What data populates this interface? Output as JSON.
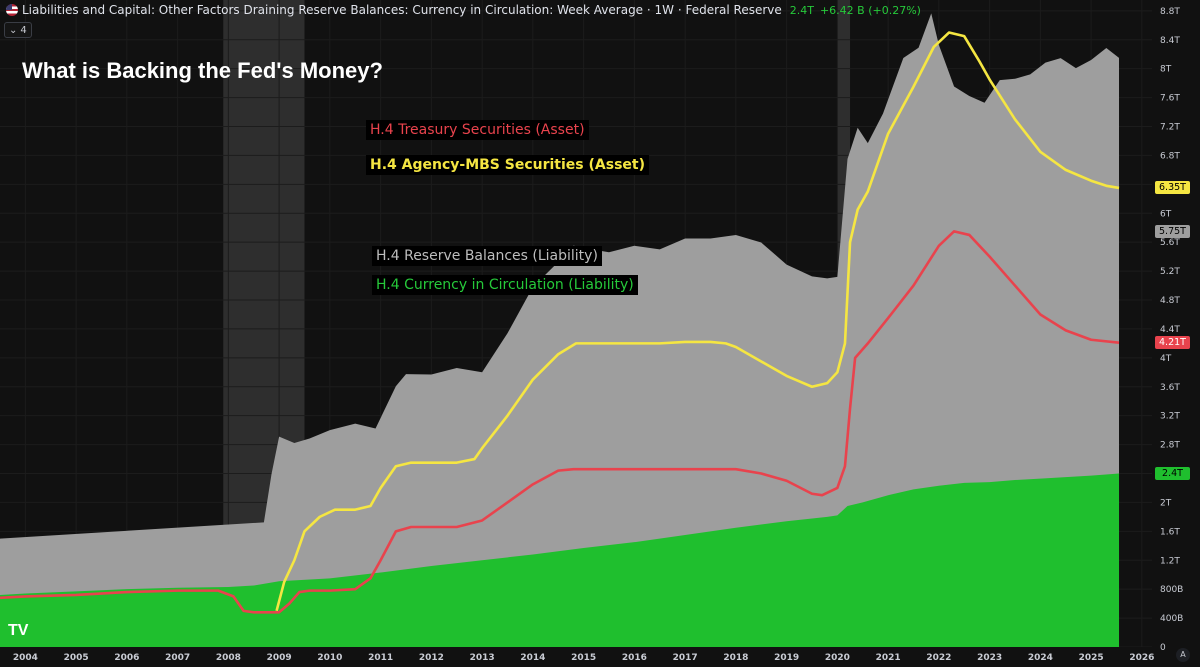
{
  "header": {
    "title": "Liabilities and Capital: Other Factors Draining Reserve Balances: Currency in Circulation: Week Average · 1W · Federal Reserve",
    "last_value": "2.4T",
    "change": "+6.42 B (+0.27%)",
    "collapse_label": "4"
  },
  "overlay_title": "What is Backing the Fed's Money?",
  "legend_items": [
    {
      "label": "H.4 Treasury Securities (Asset)",
      "color": "#e8434d"
    },
    {
      "label": "H.4 Agency-MBS Securities (Asset)",
      "color": "#f5e642"
    },
    {
      "label": "H.4 Reserve Balances (Liability)",
      "color": "#bdbdbd"
    },
    {
      "label": "H.4 Currency in Circulation (Liability)",
      "color": "#26c93a"
    }
  ],
  "price_tags": [
    {
      "label": "6.35T",
      "value": 6.35,
      "bg": "#f5e642",
      "fg": "#000000"
    },
    {
      "label": "5.75T",
      "value": 5.75,
      "bg": "#9e9e9e",
      "fg": "#000000"
    },
    {
      "label": "4.21T",
      "value": 4.21,
      "bg": "#e8434d",
      "fg": "#ffffff"
    },
    {
      "label": "2.4T",
      "value": 2.4,
      "bg": "#1fbf2e",
      "fg": "#000000"
    }
  ],
  "logo_text": "TV",
  "corner_badge": "A",
  "chart_data": {
    "type": "area",
    "ylim": [
      0,
      8.95
    ],
    "xlim": [
      2003.5,
      2026.2
    ],
    "y_unit": "trillions USD",
    "y_ticks": [
      {
        "value": 0,
        "label": "0"
      },
      {
        "value": 0.4,
        "label": "400B"
      },
      {
        "value": 0.8,
        "label": "800B"
      },
      {
        "value": 1.2,
        "label": "1.2T"
      },
      {
        "value": 1.6,
        "label": "1.6T"
      },
      {
        "value": 2.0,
        "label": "2T"
      },
      {
        "value": 2.4,
        "label": "2.4T"
      },
      {
        "value": 2.8,
        "label": "2.8T"
      },
      {
        "value": 3.2,
        "label": "3.2T"
      },
      {
        "value": 3.6,
        "label": "3.6T"
      },
      {
        "value": 4.0,
        "label": "4T"
      },
      {
        "value": 4.4,
        "label": "4.4T"
      },
      {
        "value": 4.8,
        "label": "4.8T"
      },
      {
        "value": 5.2,
        "label": "5.2T"
      },
      {
        "value": 5.6,
        "label": "5.6T"
      },
      {
        "value": 6.0,
        "label": "6T"
      },
      {
        "value": 6.4,
        "label": "6.4T"
      },
      {
        "value": 6.8,
        "label": "6.8T"
      },
      {
        "value": 7.2,
        "label": "7.2T"
      },
      {
        "value": 7.6,
        "label": "7.6T"
      },
      {
        "value": 8.0,
        "label": "8T"
      },
      {
        "value": 8.4,
        "label": "8.4T"
      },
      {
        "value": 8.8,
        "label": "8.8T"
      }
    ],
    "x_ticks": [
      {
        "value": 2004,
        "label": "2004"
      },
      {
        "value": 2005,
        "label": "2005"
      },
      {
        "value": 2006,
        "label": "2006"
      },
      {
        "value": 2007,
        "label": "2007"
      },
      {
        "value": 2008,
        "label": "2008"
      },
      {
        "value": 2009,
        "label": "2009"
      },
      {
        "value": 2010,
        "label": "2010"
      },
      {
        "value": 2011,
        "label": "2011"
      },
      {
        "value": 2012,
        "label": "2012"
      },
      {
        "value": 2013,
        "label": "2013"
      },
      {
        "value": 2014,
        "label": "2014"
      },
      {
        "value": 2015,
        "label": "2015"
      },
      {
        "value": 2016,
        "label": "2016"
      },
      {
        "value": 2017,
        "label": "2017"
      },
      {
        "value": 2018,
        "label": "2018"
      },
      {
        "value": 2019,
        "label": "2019"
      },
      {
        "value": 2020,
        "label": "2020"
      },
      {
        "value": 2021,
        "label": "2021"
      },
      {
        "value": 2022,
        "label": "2022"
      },
      {
        "value": 2023,
        "label": "2023"
      },
      {
        "value": 2024,
        "label": "2024"
      },
      {
        "value": 2025,
        "label": "2025"
      },
      {
        "value": 2026,
        "label": "2026"
      }
    ],
    "recessions": [
      [
        2007.9,
        2009.5
      ],
      [
        2020.0,
        2020.25
      ]
    ],
    "series": [
      {
        "name": "H.4 Reserve Balances (Liability)",
        "kind": "area",
        "color": "#9e9e9e",
        "stacked_on": "H.4 Currency in Circulation (Liability)",
        "x": [
          2003.5,
          2008.7,
          2008.85,
          2009.0,
          2009.3,
          2009.6,
          2010.0,
          2010.5,
          2010.9,
          2011.3,
          2011.5,
          2012.0,
          2012.5,
          2013.0,
          2013.5,
          2014.0,
          2014.5,
          2014.8,
          2015.0,
          2015.5,
          2016.0,
          2016.5,
          2017.0,
          2017.5,
          2018.0,
          2018.5,
          2019.0,
          2019.5,
          2019.8,
          2020.0,
          2020.2,
          2020.4,
          2020.6,
          2020.9,
          2021.3,
          2021.6,
          2021.85,
          2022.0,
          2022.3,
          2022.6,
          2022.9,
          2023.2,
          2023.5,
          2023.8,
          2024.1,
          2024.4,
          2024.7,
          2025.0,
          2025.3,
          2025.55
        ],
        "values": [
          0.78,
          0.85,
          1.5,
          2.0,
          1.9,
          1.95,
          2.05,
          2.1,
          2.0,
          2.55,
          2.7,
          2.65,
          2.7,
          2.6,
          3.1,
          3.7,
          4.0,
          4.2,
          4.15,
          4.05,
          4.1,
          4.0,
          4.1,
          4.05,
          4.05,
          3.9,
          3.55,
          3.35,
          3.3,
          3.3,
          4.8,
          5.2,
          4.95,
          5.3,
          6.0,
          6.1,
          6.55,
          6.1,
          5.5,
          5.35,
          5.25,
          5.55,
          5.55,
          5.6,
          5.75,
          5.8,
          5.65,
          5.75,
          5.9,
          5.75
        ]
      },
      {
        "name": "H.4 Currency in Circulation (Liability)",
        "kind": "area",
        "color": "#1fbf2e",
        "x": [
          2003.5,
          2004.0,
          2005.0,
          2006.0,
          2007.0,
          2008.0,
          2008.5,
          2009.0,
          2010.0,
          2011.0,
          2012.0,
          2013.0,
          2014.0,
          2015.0,
          2016.0,
          2017.0,
          2018.0,
          2019.0,
          2019.8,
          2020.0,
          2020.2,
          2020.5,
          2021.0,
          2021.5,
          2022.0,
          2022.5,
          2023.0,
          2023.5,
          2024.0,
          2024.5,
          2025.0,
          2025.55
        ],
        "values": [
          0.72,
          0.74,
          0.77,
          0.8,
          0.82,
          0.83,
          0.85,
          0.91,
          0.95,
          1.03,
          1.12,
          1.2,
          1.28,
          1.37,
          1.45,
          1.55,
          1.65,
          1.74,
          1.8,
          1.82,
          1.95,
          2.0,
          2.1,
          2.18,
          2.23,
          2.27,
          2.28,
          2.31,
          2.33,
          2.35,
          2.37,
          2.4
        ]
      },
      {
        "name": "H.4 Treasury Securities (Asset)",
        "kind": "line",
        "color": "#e8434d",
        "x": [
          2003.5,
          2004.0,
          2005.0,
          2006.0,
          2007.0,
          2007.8,
          2008.1,
          2008.3,
          2008.5,
          2008.7,
          2009.0,
          2009.2,
          2009.4,
          2009.6,
          2010.0,
          2010.5,
          2010.8,
          2011.0,
          2011.3,
          2011.6,
          2011.8,
          2012.0,
          2012.5,
          2013.0,
          2013.5,
          2014.0,
          2014.5,
          2014.8,
          2015.0,
          2016.0,
          2017.0,
          2018.0,
          2018.5,
          2019.0,
          2019.5,
          2019.7,
          2020.0,
          2020.15,
          2020.25,
          2020.35,
          2020.6,
          2021.0,
          2021.5,
          2022.0,
          2022.3,
          2022.6,
          2023.0,
          2023.5,
          2024.0,
          2024.5,
          2025.0,
          2025.55
        ],
        "values": [
          0.68,
          0.7,
          0.72,
          0.76,
          0.78,
          0.78,
          0.7,
          0.5,
          0.48,
          0.48,
          0.48,
          0.6,
          0.76,
          0.78,
          0.78,
          0.8,
          0.95,
          1.2,
          1.6,
          1.66,
          1.66,
          1.66,
          1.66,
          1.75,
          2.0,
          2.25,
          2.44,
          2.46,
          2.46,
          2.46,
          2.46,
          2.46,
          2.4,
          2.3,
          2.12,
          2.1,
          2.2,
          2.5,
          3.3,
          4.0,
          4.2,
          4.55,
          5.0,
          5.55,
          5.75,
          5.7,
          5.4,
          5.0,
          4.6,
          4.38,
          4.25,
          4.21
        ]
      },
      {
        "name": "H.4 Agency-MBS Securities (Asset)",
        "kind": "line",
        "color": "#f5e642",
        "x": [
          2008.95,
          2009.1,
          2009.3,
          2009.5,
          2009.8,
          2010.1,
          2010.5,
          2010.8,
          2011.0,
          2011.3,
          2011.6,
          2012.0,
          2012.5,
          2012.85,
          2013.0,
          2013.5,
          2014.0,
          2014.5,
          2014.85,
          2015.0,
          2015.5,
          2016.0,
          2016.5,
          2017.0,
          2017.5,
          2017.8,
          2018.0,
          2018.5,
          2019.0,
          2019.5,
          2019.8,
          2020.0,
          2020.15,
          2020.25,
          2020.4,
          2020.6,
          2021.0,
          2021.5,
          2021.9,
          2022.2,
          2022.5,
          2022.8,
          2023.0,
          2023.5,
          2024.0,
          2024.5,
          2025.0,
          2025.3,
          2025.55
        ],
        "values": [
          0.5,
          0.9,
          1.2,
          1.6,
          1.8,
          1.9,
          1.9,
          1.95,
          2.2,
          2.5,
          2.55,
          2.55,
          2.55,
          2.6,
          2.75,
          3.2,
          3.7,
          4.05,
          4.2,
          4.2,
          4.2,
          4.2,
          4.2,
          4.22,
          4.22,
          4.2,
          4.15,
          3.95,
          3.75,
          3.6,
          3.65,
          3.8,
          4.2,
          5.6,
          6.05,
          6.3,
          7.1,
          7.75,
          8.3,
          8.5,
          8.45,
          8.1,
          7.85,
          7.3,
          6.85,
          6.6,
          6.45,
          6.38,
          6.35
        ]
      }
    ]
  }
}
